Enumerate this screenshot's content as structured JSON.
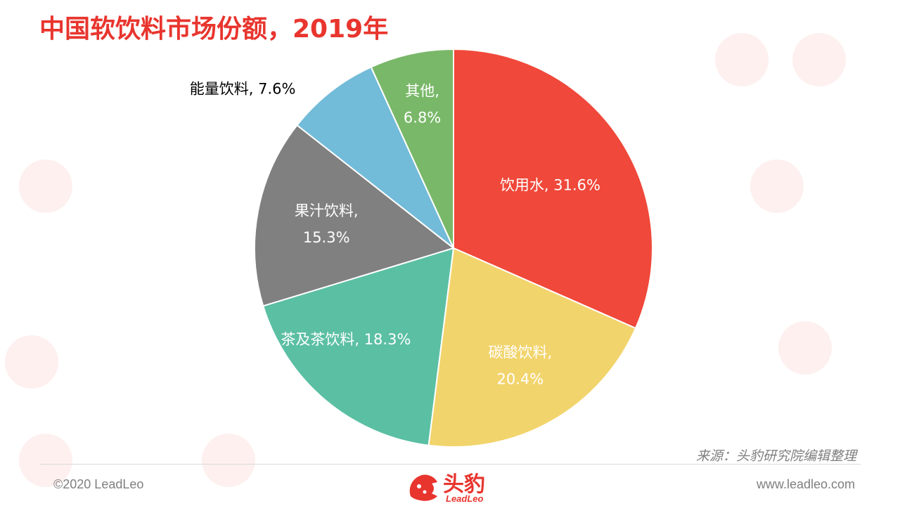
{
  "title": "中国软饮料市场份额，2019年",
  "source": "来源：头豹研究院编辑整理",
  "footer": {
    "copyright": "©2020 LeadLeo",
    "website": "www.leadleo.com"
  },
  "logo": {
    "cn": "头豹",
    "en": "LeadLeo"
  },
  "chart_data": {
    "type": "pie",
    "title": "中国软饮料市场份额，2019年",
    "start": "12 o'clock",
    "direction": "clockwise",
    "slices": [
      {
        "label": "饮用水",
        "value": 31.6,
        "display": "饮用水, 31.6%",
        "color": "#f0483a",
        "label_color": "#ffffff",
        "label_lines": [
          "饮用水, 31.6%"
        ]
      },
      {
        "label": "碳酸饮料",
        "value": 20.4,
        "display": "碳酸饮料, 20.4%",
        "color": "#f2d46c",
        "label_color": "#ffffff",
        "label_lines": [
          "碳酸饮料,",
          "20.4%"
        ]
      },
      {
        "label": "茶及茶饮料",
        "value": 18.3,
        "display": "茶及茶饮料, 18.3%",
        "color": "#5bbfa3",
        "label_color": "#ffffff",
        "label_lines": [
          "茶及茶饮料, 18.3%"
        ]
      },
      {
        "label": "果汁饮料",
        "value": 15.3,
        "display": "果汁饮料, 15.3%",
        "color": "#808080",
        "label_color": "#ffffff",
        "label_lines": [
          "果汁饮料,",
          "15.3%"
        ]
      },
      {
        "label": "能量饮料",
        "value": 7.6,
        "display": "能量饮料, 7.6%",
        "color": "#72bbd9",
        "label_color": "#000000",
        "label_lines": [
          "能量饮料, 7.6%"
        ]
      },
      {
        "label": "其他",
        "value": 6.8,
        "display": "其他, 6.8%",
        "color": "#79b868",
        "label_color": "#ffffff",
        "label_lines": [
          "其他,",
          "6.8%"
        ]
      }
    ]
  }
}
